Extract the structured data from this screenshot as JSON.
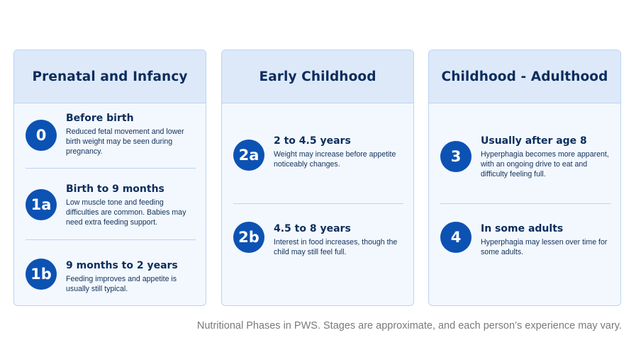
{
  "columns": [
    {
      "title": "Prenatal and Infancy",
      "stages": [
        {
          "badge": "0",
          "heading": "Before birth",
          "description": "Reduced fetal movement and lower birth weight may be seen during pregnancy."
        },
        {
          "badge": "1a",
          "heading": "Birth to 9 months",
          "description": "Low muscle tone and feeding difficulties are common. Babies may need extra feeding support."
        },
        {
          "badge": "1b",
          "heading": "9 months to 2 years",
          "description": "Feeding improves and appetite is usually still typical."
        }
      ]
    },
    {
      "title": "Early Childhood",
      "stages": [
        {
          "badge": "2a",
          "heading": "2 to 4.5 years",
          "description": "Weight may increase before appetite noticeably changes."
        },
        {
          "badge": "2b",
          "heading": "4.5 to 8 years",
          "description": "Interest in food increases, though the child may still feel full."
        }
      ]
    },
    {
      "title": "Childhood - Adulthood",
      "stages": [
        {
          "badge": "3",
          "heading": "Usually after age 8",
          "description": "Hyperphagia becomes more apparent, with an ongoing drive to eat and difficulty feeling full."
        },
        {
          "badge": "4",
          "heading": "In some adults",
          "description": "Hyperphagia may lessen over time for some adults."
        }
      ]
    }
  ],
  "caption": "Nutritional Phases in PWS. Stages are approximate, and each person’s experience may vary.",
  "colors": {
    "badge": "#0c52b3",
    "header_bg": "#dde9f9",
    "card_bg": "#f3f8fe",
    "border": "#b9d3f3",
    "title": "#0c2d5c"
  }
}
